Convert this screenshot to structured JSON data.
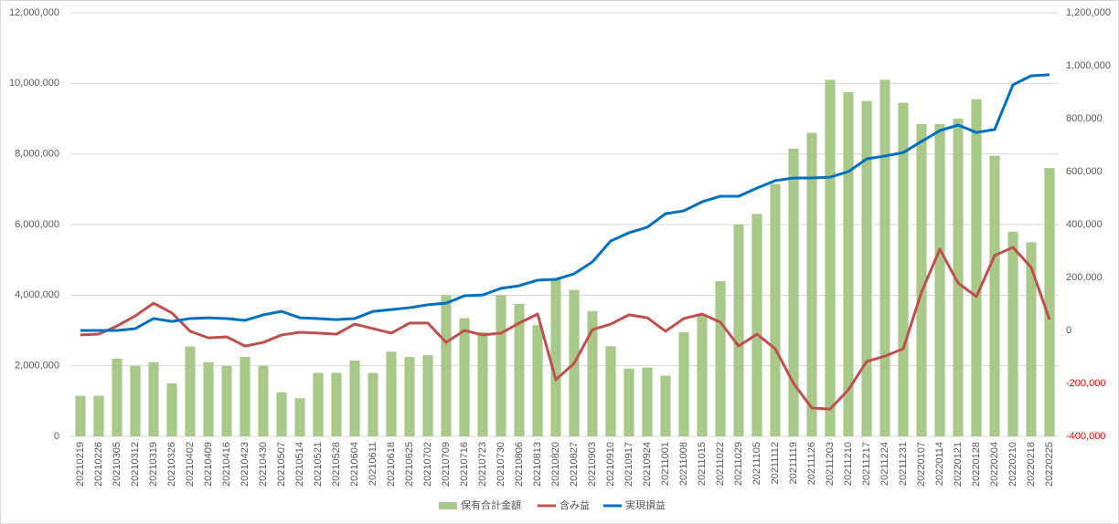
{
  "chart_data": {
    "type": "bar-line",
    "categories": [
      "20210219",
      "20210226",
      "20210305",
      "20210312",
      "20210319",
      "20210326",
      "20210402",
      "20210409",
      "20210416",
      "20210423",
      "20210430",
      "20210507",
      "20210514",
      "20210521",
      "20210528",
      "20210604",
      "20210611",
      "20210618",
      "20210625",
      "20210702",
      "20210709",
      "20210716",
      "20210723",
      "20210730",
      "20210806",
      "20210813",
      "20210820",
      "20210827",
      "20210903",
      "20210910",
      "20210917",
      "20210924",
      "20211001",
      "20211008",
      "20211015",
      "20211022",
      "20211029",
      "20211105",
      "20211112",
      "20211119",
      "20211126",
      "20211203",
      "20211210",
      "20211217",
      "20211224",
      "20211231",
      "20220107",
      "20220114",
      "20220121",
      "20220128",
      "20220204",
      "20220210",
      "20220218",
      "20220225"
    ],
    "series": [
      {
        "name": "保有合計金額",
        "type": "bar",
        "color": "#a9c98a",
        "values": [
          1150000,
          1150000,
          2200000,
          2000000,
          2100000,
          1500000,
          2550000,
          2100000,
          2000000,
          2250000,
          2000000,
          1250000,
          1080000,
          1800000,
          1800000,
          2150000,
          1800000,
          2400000,
          2250000,
          2300000,
          4000000,
          3350000,
          2950000,
          4000000,
          3750000,
          3150000,
          4450000,
          4150000,
          3550000,
          2550000,
          1920000,
          1950000,
          1720000,
          2950000,
          3450000,
          4400000,
          6000000,
          6300000,
          7150000,
          8150000,
          8600000,
          10100000,
          9750000,
          9500000,
          10100000,
          9450000,
          8850000,
          8850000,
          9000000,
          9550000,
          7950000,
          5800000,
          5500000,
          7600000
        ]
      },
      {
        "name": "含み益",
        "type": "line",
        "axis": "y2",
        "color": "#c0504d",
        "values": [
          -17000,
          -14000,
          17000,
          55000,
          103000,
          66000,
          -3000,
          -28000,
          -24000,
          -59000,
          -45000,
          -17000,
          -7000,
          -10000,
          -14000,
          24000,
          7000,
          -10000,
          28000,
          28000,
          -45000,
          0,
          -17000,
          -10000,
          28000,
          62000,
          -186000,
          -124000,
          3000,
          24000,
          59000,
          48000,
          -3000,
          45000,
          62000,
          31000,
          -59000,
          -14000,
          -69000,
          -200000,
          -293000,
          -297000,
          -224000,
          -117000,
          -97000,
          -69000,
          145000,
          307000,
          179000,
          128000,
          283000,
          314000,
          238000,
          41000
        ]
      },
      {
        "name": "実現損益",
        "type": "line",
        "axis": "y2",
        "color": "#0070c0",
        "values": [
          0,
          0,
          0,
          7000,
          45000,
          34000,
          45000,
          48000,
          45000,
          38000,
          59000,
          72000,
          48000,
          45000,
          41000,
          45000,
          72000,
          79000,
          86000,
          97000,
          103000,
          131000,
          134000,
          159000,
          169000,
          190000,
          193000,
          214000,
          259000,
          338000,
          369000,
          390000,
          441000,
          452000,
          486000,
          507000,
          507000,
          538000,
          566000,
          576000,
          576000,
          579000,
          600000,
          648000,
          659000,
          672000,
          714000,
          755000,
          776000,
          748000,
          759000,
          928000,
          962000,
          966000
        ]
      }
    ],
    "ylim": [
      0,
      12000000
    ],
    "yticks": [
      0,
      {
        "value": 2000000,
        "label": "2,000,000"
      },
      {
        "value": 4000000,
        "label": "4,000,000"
      },
      {
        "value": 6000000,
        "label": "6,000,000"
      },
      {
        "value": 8000000,
        "label": "8,000,000"
      },
      {
        "value": 10000000,
        "label": "10,000,000"
      },
      {
        "value": 12000000,
        "label": "12,000,000"
      }
    ],
    "y2lim": [
      -400000,
      1200000
    ],
    "y2ticks": [
      {
        "value": -400000,
        "label": "-400,000"
      },
      {
        "value": -200000,
        "label": "-200,000"
      },
      0,
      {
        "value": 200000,
        "label": "200,000"
      },
      {
        "value": 400000,
        "label": "400,000"
      },
      {
        "value": 600000,
        "label": "600,000"
      },
      {
        "value": 800000,
        "label": "800,000"
      },
      {
        "value": 1000000,
        "label": "1,000,000"
      },
      {
        "value": 1200000,
        "label": "1,200,000"
      }
    ],
    "y2_negative_color": "#ff0000",
    "grid": true,
    "legend": "bottom"
  }
}
